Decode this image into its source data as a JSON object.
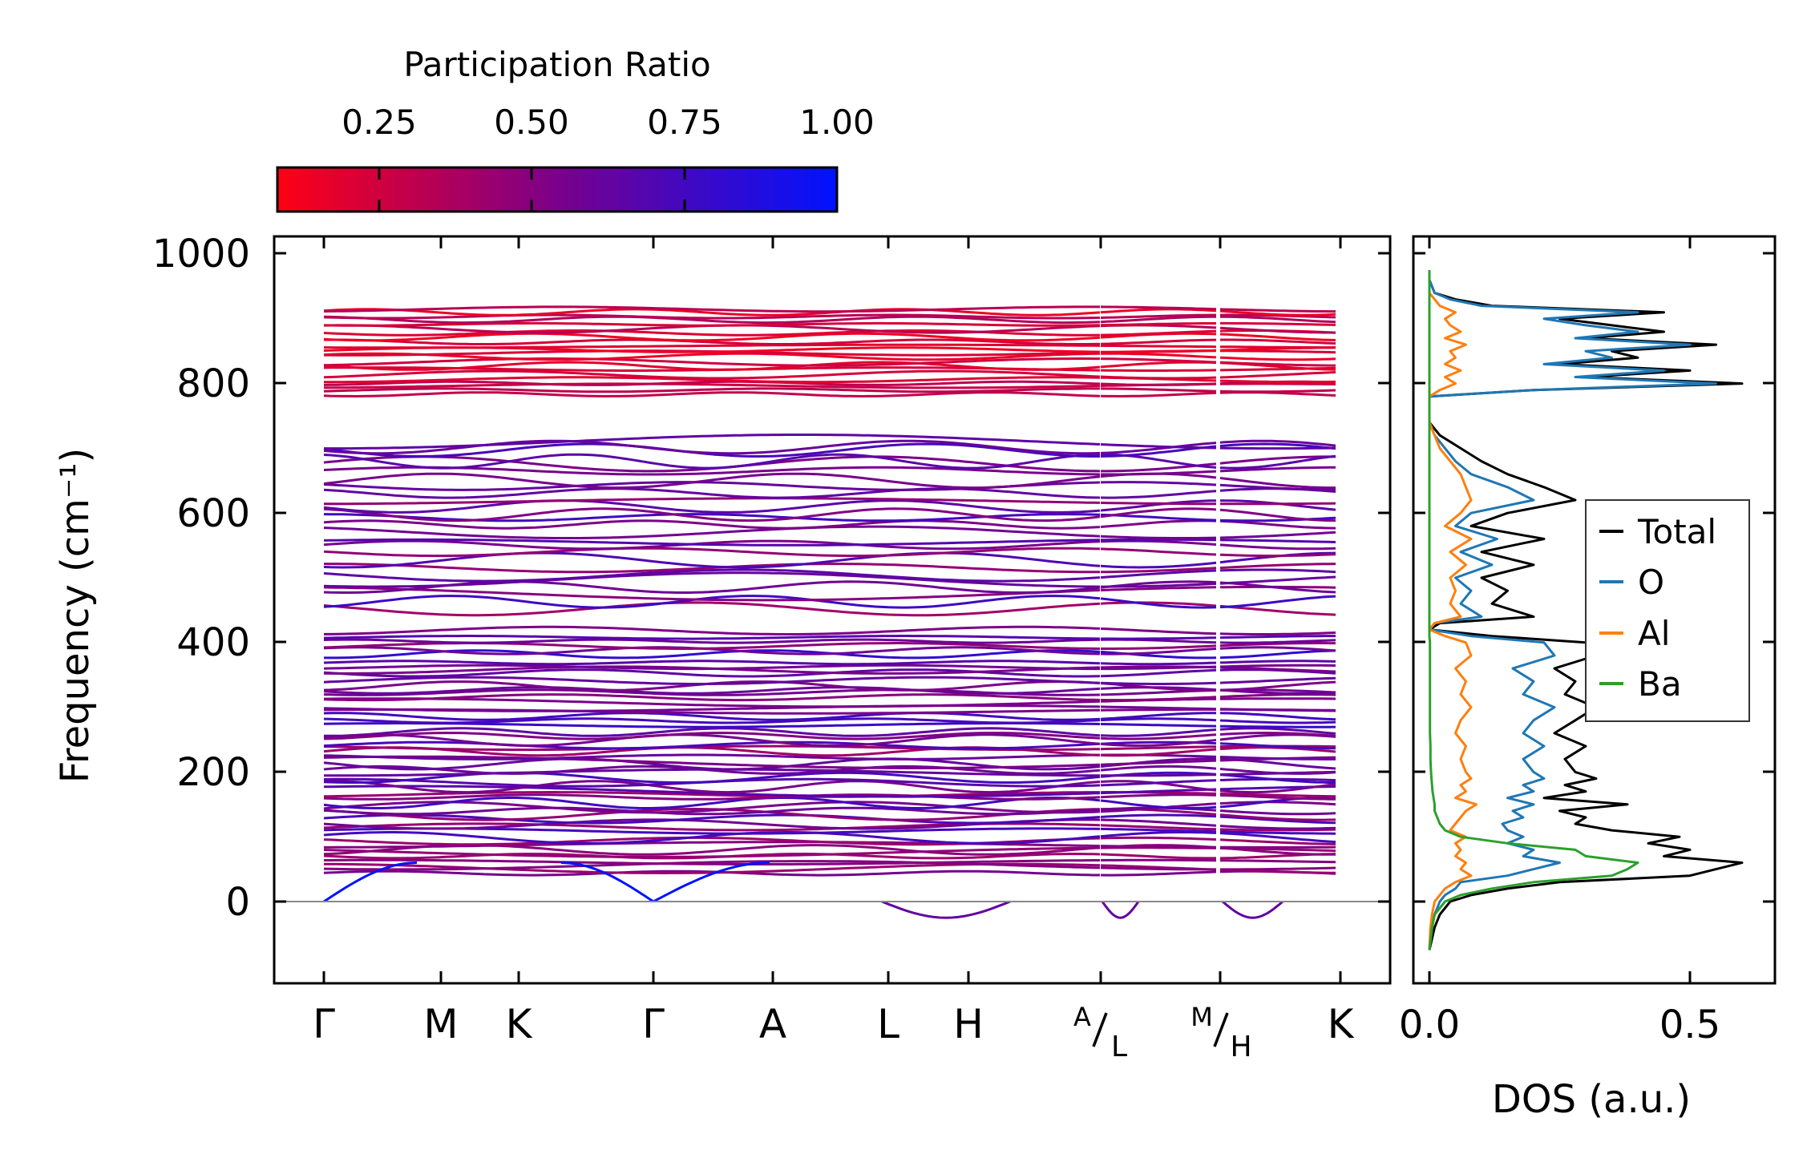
{
  "chart_data": [
    {
      "type": "line",
      "name": "phonon-band-structure",
      "title": "",
      "xlabel": "",
      "ylabel": "Frequency (cm⁻¹)",
      "ylim": [
        -125,
        1025
      ],
      "yticks": [
        0,
        200,
        400,
        600,
        800,
        1000
      ],
      "ytick_labels": [
        "0",
        "200",
        "400",
        "600",
        "800",
        "1000"
      ],
      "path_labels": [
        "Γ",
        "M",
        "K",
        "Γ",
        "A",
        "L",
        "H",
        "A/L",
        "M/H",
        "K"
      ],
      "path_label_parts": {
        "gamma1": "Γ",
        "m": "M",
        "k1": "K",
        "gamma2": "Γ",
        "a": "A",
        "l": "L",
        "h": "H",
        "al_top": "A",
        "al_bottom": "L",
        "mh_top": "M",
        "mh_bottom": "H",
        "k2": "K"
      },
      "segment_breaks": [
        "A/L",
        "M/H"
      ],
      "band_groups_cm1": {
        "high": [
          780,
          920
        ],
        "upper_mid": [
          450,
          720
        ],
        "mid": [
          260,
          420
        ],
        "low": [
          40,
          260
        ],
        "acoustic": [
          0,
          60
        ],
        "imaginary_min": -25
      },
      "colorbar": {
        "label": "Participation Ratio",
        "ticks": [
          0.25,
          0.5,
          0.75,
          1.0
        ],
        "tick_labels": [
          "0.25",
          "0.50",
          "0.75",
          "1.00"
        ],
        "range": [
          0.0,
          1.0
        ],
        "color_low": "#ff0015",
        "color_mid": "#7a008a",
        "color_high": "#0012ff"
      }
    },
    {
      "type": "line",
      "name": "phonon-dos",
      "xlabel": "DOS (a.u.)",
      "xlim": [
        -0.03,
        0.65
      ],
      "xticks": [
        0.0,
        0.5
      ],
      "xtick_labels": [
        "0.0",
        "0.5"
      ],
      "ylim": [
        -125,
        1025
      ],
      "legend": [
        "Total",
        "O",
        "Al",
        "Ba"
      ],
      "legend_position": "center-right",
      "series_colors": {
        "Total": "#000000",
        "O": "#1f77b4",
        "Al": "#ff7f0e",
        "Ba": "#2ca02c"
      },
      "frequency": [
        -75,
        -40,
        -20,
        0,
        10,
        20,
        30,
        40,
        50,
        60,
        70,
        80,
        90,
        100,
        110,
        120,
        130,
        140,
        150,
        160,
        170,
        180,
        190,
        200,
        220,
        240,
        260,
        280,
        300,
        320,
        340,
        360,
        380,
        400,
        410,
        420,
        430,
        440,
        460,
        480,
        500,
        520,
        540,
        560,
        580,
        600,
        620,
        640,
        660,
        680,
        700,
        720,
        740,
        760,
        780,
        790,
        800,
        810,
        820,
        830,
        840,
        850,
        860,
        870,
        880,
        890,
        900,
        910,
        920,
        930,
        940,
        960,
        975
      ],
      "series": [
        {
          "name": "Total",
          "values": [
            0.0,
            0.01,
            0.02,
            0.04,
            0.08,
            0.15,
            0.25,
            0.5,
            0.55,
            0.6,
            0.45,
            0.5,
            0.42,
            0.48,
            0.35,
            0.28,
            0.3,
            0.25,
            0.38,
            0.22,
            0.3,
            0.26,
            0.32,
            0.28,
            0.26,
            0.3,
            0.24,
            0.28,
            0.32,
            0.26,
            0.28,
            0.24,
            0.32,
            0.3,
            0.12,
            0.0,
            0.02,
            0.2,
            0.12,
            0.15,
            0.1,
            0.2,
            0.1,
            0.22,
            0.08,
            0.15,
            0.28,
            0.22,
            0.15,
            0.1,
            0.06,
            0.02,
            0.0,
            0.0,
            0.0,
            0.2,
            0.6,
            0.3,
            0.5,
            0.25,
            0.4,
            0.35,
            0.55,
            0.3,
            0.45,
            0.35,
            0.25,
            0.45,
            0.12,
            0.05,
            0.01,
            0.0,
            0.0
          ]
        },
        {
          "name": "O",
          "values": [
            0.0,
            0.005,
            0.01,
            0.02,
            0.03,
            0.05,
            0.06,
            0.15,
            0.2,
            0.25,
            0.18,
            0.2,
            0.15,
            0.18,
            0.15,
            0.14,
            0.18,
            0.16,
            0.2,
            0.15,
            0.2,
            0.18,
            0.22,
            0.2,
            0.18,
            0.22,
            0.18,
            0.2,
            0.24,
            0.18,
            0.2,
            0.16,
            0.24,
            0.22,
            0.08,
            0.0,
            0.01,
            0.1,
            0.06,
            0.08,
            0.05,
            0.12,
            0.06,
            0.13,
            0.05,
            0.08,
            0.2,
            0.15,
            0.08,
            0.05,
            0.03,
            0.01,
            0.0,
            0.0,
            0.0,
            0.2,
            0.55,
            0.28,
            0.45,
            0.22,
            0.35,
            0.3,
            0.5,
            0.28,
            0.4,
            0.3,
            0.22,
            0.4,
            0.1,
            0.04,
            0.01,
            0.0,
            0.0
          ]
        },
        {
          "name": "Al",
          "values": [
            0.0,
            0.002,
            0.005,
            0.01,
            0.02,
            0.03,
            0.05,
            0.08,
            0.06,
            0.07,
            0.05,
            0.06,
            0.05,
            0.07,
            0.04,
            0.05,
            0.06,
            0.07,
            0.09,
            0.05,
            0.07,
            0.06,
            0.08,
            0.07,
            0.06,
            0.07,
            0.05,
            0.06,
            0.08,
            0.06,
            0.07,
            0.05,
            0.08,
            0.07,
            0.03,
            0.0,
            0.01,
            0.06,
            0.04,
            0.05,
            0.04,
            0.07,
            0.04,
            0.08,
            0.03,
            0.06,
            0.08,
            0.07,
            0.06,
            0.04,
            0.02,
            0.01,
            0.0,
            0.0,
            0.0,
            0.02,
            0.05,
            0.03,
            0.06,
            0.03,
            0.05,
            0.04,
            0.07,
            0.03,
            0.06,
            0.04,
            0.03,
            0.05,
            0.02,
            0.01,
            0.0,
            0.0,
            0.0
          ]
        },
        {
          "name": "Ba",
          "values": [
            0.0,
            0.005,
            0.01,
            0.03,
            0.06,
            0.12,
            0.2,
            0.35,
            0.38,
            0.4,
            0.3,
            0.28,
            0.15,
            0.06,
            0.03,
            0.02,
            0.015,
            0.01,
            0.01,
            0.008,
            0.006,
            0.005,
            0.004,
            0.003,
            0.002,
            0.002,
            0.001,
            0.001,
            0.001,
            0.001,
            0.001,
            0.001,
            0.001,
            0.001,
            0.0,
            0.0,
            0.0,
            0.0,
            0.0,
            0.0,
            0.0,
            0.0,
            0.0,
            0.0,
            0.0,
            0.0,
            0.0,
            0.0,
            0.0,
            0.0,
            0.0,
            0.0,
            0.0,
            0.0,
            0.0,
            0.0,
            0.0,
            0.0,
            0.0,
            0.0,
            0.0,
            0.0,
            0.0,
            0.0,
            0.0,
            0.0,
            0.0,
            0.0,
            0.0,
            0.0,
            0.0,
            0.0,
            0.0
          ]
        }
      ]
    }
  ]
}
